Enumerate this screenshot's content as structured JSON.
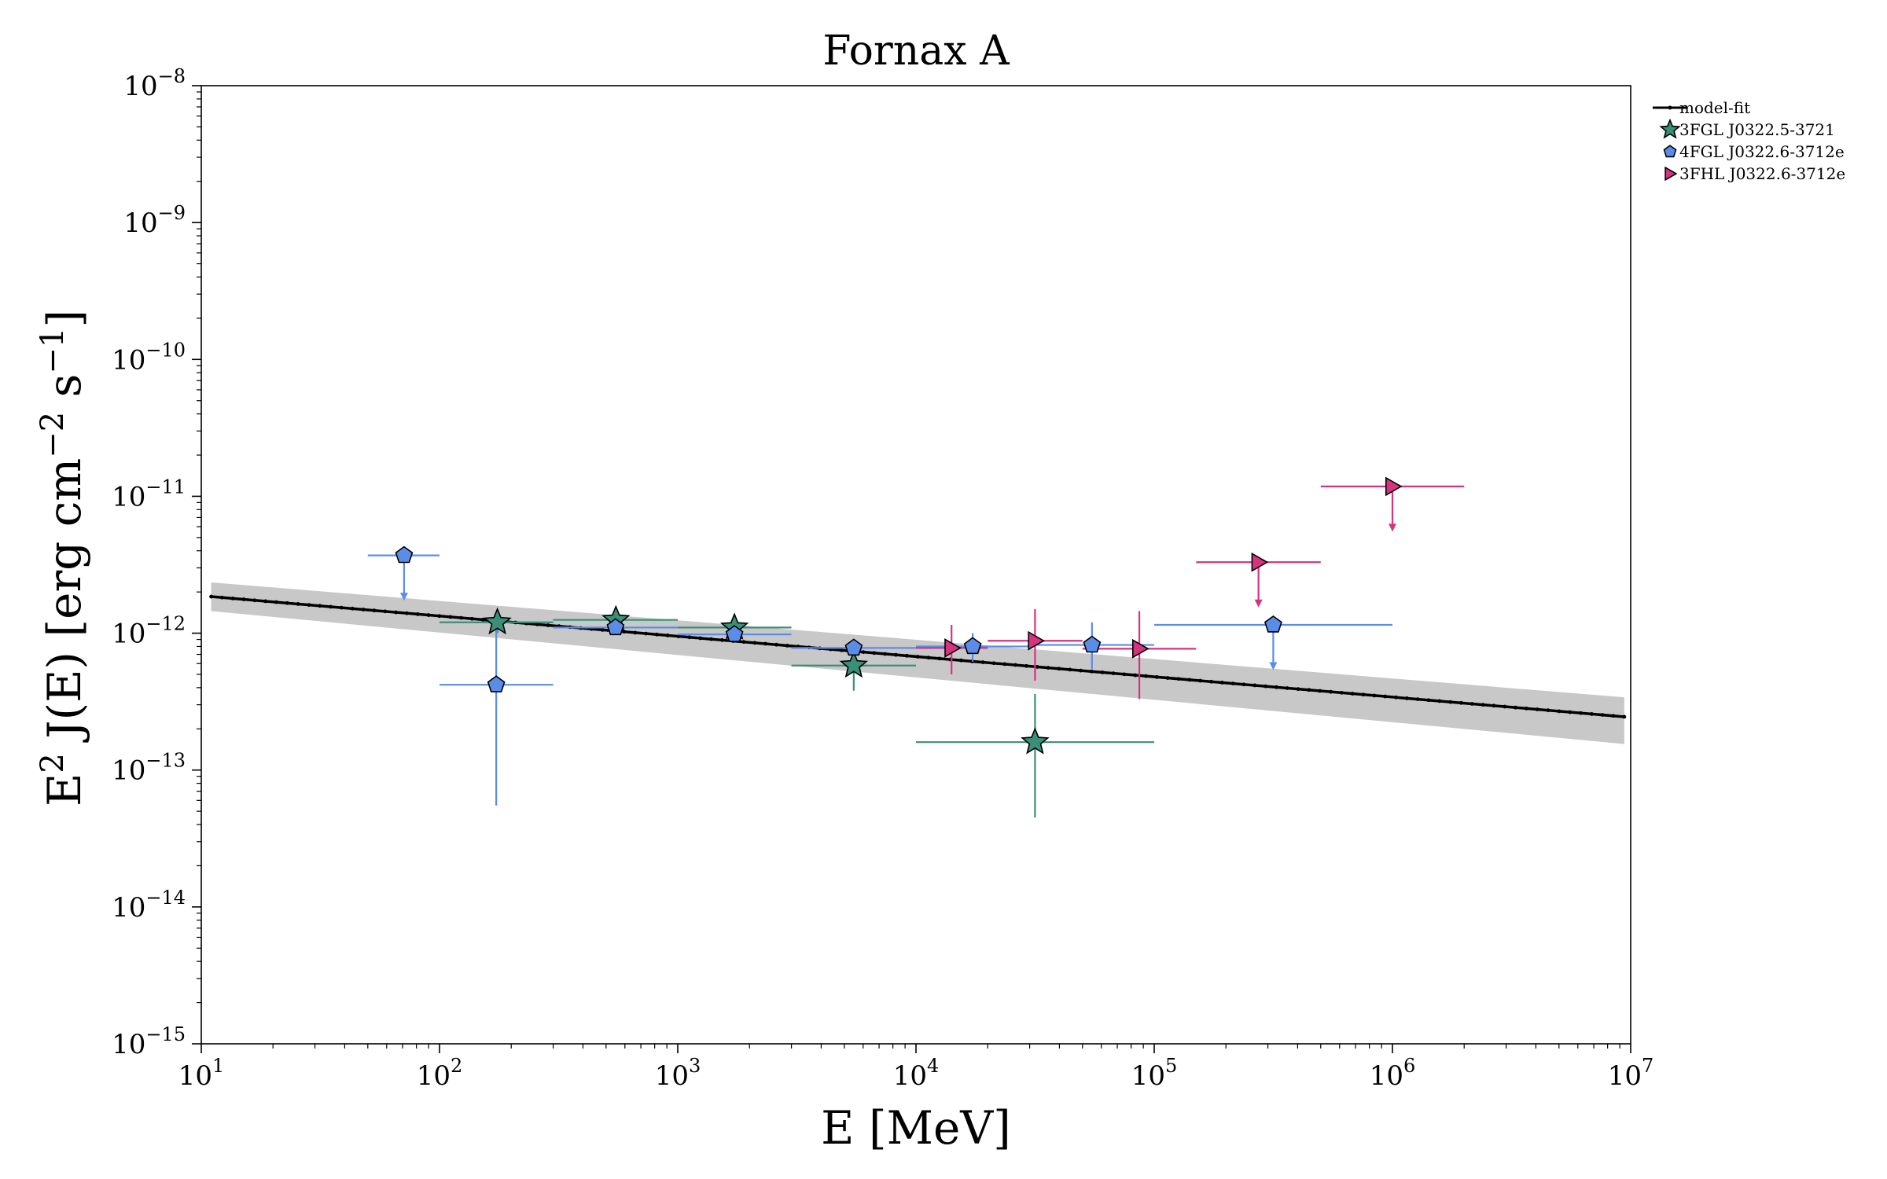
{
  "chart_data": {
    "type": "scatter",
    "title": "Fornax A",
    "xlabel": "E [MeV]",
    "ylabel_parts": [
      "E",
      "2",
      " J(E) [erg cm",
      "−2",
      " s",
      "−1",
      "]"
    ],
    "xscale": "log",
    "yscale": "log",
    "xlim": [
      10,
      10000000
    ],
    "ylim": [
      1e-15,
      1e-08
    ],
    "x_ticks": [
      {
        "base": "10",
        "exp": "1"
      },
      {
        "base": "10",
        "exp": "2"
      },
      {
        "base": "10",
        "exp": "3"
      },
      {
        "base": "10",
        "exp": "4"
      },
      {
        "base": "10",
        "exp": "5"
      },
      {
        "base": "10",
        "exp": "6"
      },
      {
        "base": "10",
        "exp": "7"
      }
    ],
    "y_ticks": [
      {
        "base": "10",
        "exp": "−15"
      },
      {
        "base": "10",
        "exp": "−14"
      },
      {
        "base": "10",
        "exp": "−13"
      },
      {
        "base": "10",
        "exp": "−12"
      },
      {
        "base": "10",
        "exp": "−11"
      },
      {
        "base": "10",
        "exp": "−10"
      },
      {
        "base": "10",
        "exp": "−9"
      },
      {
        "base": "10",
        "exp": "−8"
      }
    ],
    "legend_position": "outside upper right",
    "model_fit": {
      "name": "model-fit",
      "color": "#000000",
      "x_range": [
        11,
        9400000
      ],
      "y_start": 1.85e-12,
      "y_end": 2.45e-13,
      "band_start": [
        1.45e-12,
        2.35e-12
      ],
      "band_end": [
        1.55e-13,
        3.4e-13
      ],
      "band_color": "#c8c8c8"
    },
    "series": [
      {
        "name": "3FGL J0322.5-3721",
        "marker": "star",
        "color": "#3a8f78",
        "points": [
          {
            "x": 175,
            "y": 1.2e-12,
            "xlo": 100,
            "xhi": 300,
            "ylo": 1e-12,
            "yhi": 1.25e-12
          },
          {
            "x": 550,
            "y": 1.25e-12,
            "xlo": 300,
            "xhi": 1000
          },
          {
            "x": 1730,
            "y": 1.1e-12,
            "xlo": 1000,
            "xhi": 3000
          },
          {
            "x": 5480,
            "y": 5.8e-13,
            "xlo": 3000,
            "xhi": 10000,
            "ylo": 3.8e-13,
            "yhi": 8e-13
          },
          {
            "x": 31600,
            "y": 1.6e-13,
            "xlo": 10000,
            "xhi": 100000,
            "ylo": 4.5e-14,
            "yhi": 3.6e-13
          }
        ]
      },
      {
        "name": "4FGL J0322.6-3712e",
        "marker": "pentagon",
        "color": "#5b8de8",
        "points": [
          {
            "x": 71,
            "y": 3.7e-12,
            "xlo": 50,
            "xhi": 100,
            "upper_limit": true
          },
          {
            "x": 173,
            "y": 4.2e-13,
            "xlo": 100,
            "xhi": 300,
            "ylo": 5.5e-14,
            "yhi": 1.2e-12
          },
          {
            "x": 548,
            "y": 1.1e-12,
            "xlo": 300,
            "xhi": 1000
          },
          {
            "x": 1730,
            "y": 9.8e-13,
            "xlo": 1000,
            "xhi": 3000
          },
          {
            "x": 5480,
            "y": 7.8e-13,
            "xlo": 3000,
            "xhi": 10000
          },
          {
            "x": 17300,
            "y": 8e-13,
            "xlo": 10000,
            "xhi": 30000,
            "ylo": 6.2e-13,
            "yhi": 1e-12
          },
          {
            "x": 54800,
            "y": 8.2e-13,
            "xlo": 30000,
            "xhi": 100000,
            "ylo": 5.5e-13,
            "yhi": 1.2e-12
          },
          {
            "x": 316000,
            "y": 1.15e-12,
            "xlo": 100000,
            "xhi": 1000000,
            "upper_limit": true
          }
        ]
      },
      {
        "name": "3FHL J0322.6-3712e",
        "marker": "triangle-right",
        "color": "#d6337f",
        "points": [
          {
            "x": 14100,
            "y": 7.8e-13,
            "xlo": 10000,
            "xhi": 20000,
            "ylo": 5e-13,
            "yhi": 1.15e-12
          },
          {
            "x": 31600,
            "y": 8.8e-13,
            "xlo": 20000,
            "xhi": 50000,
            "ylo": 4.5e-13,
            "yhi": 1.5e-12
          },
          {
            "x": 86600,
            "y": 7.7e-13,
            "xlo": 50000,
            "xhi": 150000,
            "ylo": 3.3e-13,
            "yhi": 1.45e-12
          },
          {
            "x": 274000,
            "y": 3.3e-12,
            "xlo": 150000,
            "xhi": 500000,
            "upper_limit": true
          },
          {
            "x": 1000000,
            "y": 1.18e-11,
            "xlo": 500000,
            "xhi": 2000000,
            "upper_limit": true
          }
        ]
      }
    ]
  }
}
